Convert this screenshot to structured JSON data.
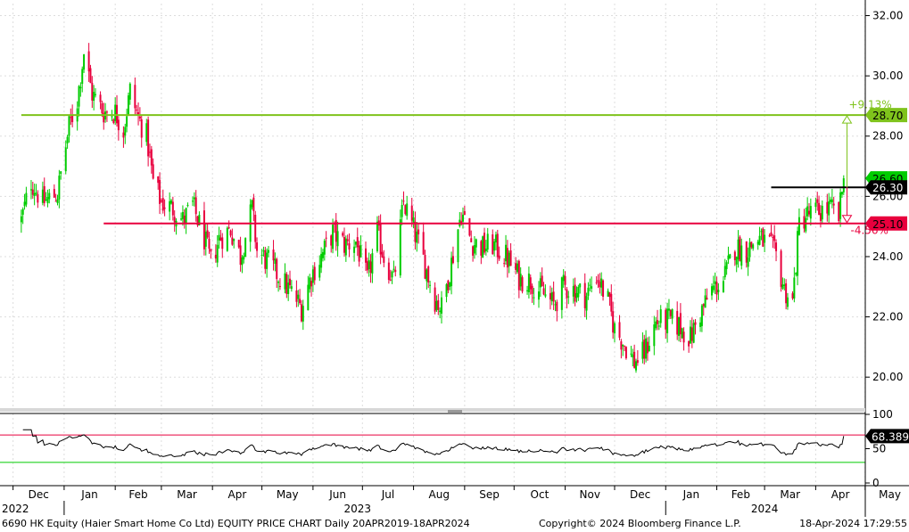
{
  "chart_data": [
    {
      "type": "candlestick",
      "ticker": "6690 HK Equity",
      "ylim": [
        19,
        32.4
      ],
      "y_ticks": [
        "32.00",
        "30.00",
        "28.00",
        "26.00",
        "24.00",
        "22.00",
        "20.00"
      ],
      "up_color": "#00cc00",
      "down_color": "#e8003d",
      "close_path": [
        [
          "2022-12-06",
          25.2
        ],
        [
          "2022-12-12",
          26.5
        ],
        [
          "2022-12-19",
          25.8
        ],
        [
          "2022-12-28",
          26.1
        ],
        [
          "2023-01-04",
          28.3
        ],
        [
          "2023-01-09",
          29.2
        ],
        [
          "2023-01-13",
          30.8
        ],
        [
          "2023-01-18",
          29.4
        ],
        [
          "2023-01-25",
          28.8
        ],
        [
          "2023-02-01",
          28.8
        ],
        [
          "2023-02-06",
          28.2
        ],
        [
          "2023-02-10",
          29.5
        ],
        [
          "2023-02-15",
          28.6
        ],
        [
          "2023-02-20",
          28.0
        ],
        [
          "2023-02-24",
          26.5
        ],
        [
          "2023-03-01",
          25.8
        ],
        [
          "2023-03-08",
          25.6
        ],
        [
          "2023-03-14",
          25.2
        ],
        [
          "2023-03-20",
          25.7
        ],
        [
          "2023-03-27",
          24.6
        ],
        [
          "2023-03-31",
          23.8
        ],
        [
          "2023-04-05",
          24.6
        ],
        [
          "2023-04-12",
          24.9
        ],
        [
          "2023-04-18",
          24.0
        ],
        [
          "2023-04-25",
          25.6
        ],
        [
          "2023-04-28",
          24.2
        ],
        [
          "2023-05-05",
          23.8
        ],
        [
          "2023-05-12",
          23.3
        ],
        [
          "2023-05-19",
          22.8
        ],
        [
          "2023-05-25",
          22.3
        ],
        [
          "2023-05-31",
          23.4
        ],
        [
          "2023-06-07",
          24.1
        ],
        [
          "2023-06-13",
          24.8
        ],
        [
          "2023-06-20",
          24.4
        ],
        [
          "2023-06-27",
          24.5
        ],
        [
          "2023-07-04",
          23.2
        ],
        [
          "2023-07-10",
          24.8
        ],
        [
          "2023-07-14",
          24.0
        ],
        [
          "2023-07-20",
          23.2
        ],
        [
          "2023-07-26",
          25.8
        ],
        [
          "2023-08-01",
          24.9
        ],
        [
          "2023-08-07",
          23.9
        ],
        [
          "2023-08-14",
          22.6
        ],
        [
          "2023-08-18",
          22.3
        ],
        [
          "2023-08-24",
          23.8
        ],
        [
          "2023-08-30",
          25.5
        ],
        [
          "2023-09-05",
          24.5
        ],
        [
          "2023-09-12",
          24.3
        ],
        [
          "2023-09-18",
          24.4
        ],
        [
          "2023-09-26",
          24.0
        ],
        [
          "2023-10-04",
          23.3
        ],
        [
          "2023-10-11",
          23.2
        ],
        [
          "2023-10-18",
          22.8
        ],
        [
          "2023-10-25",
          22.4
        ],
        [
          "2023-10-31",
          23.0
        ],
        [
          "2023-11-07",
          22.9
        ],
        [
          "2023-11-14",
          22.7
        ],
        [
          "2023-11-20",
          23.4
        ],
        [
          "2023-11-27",
          22.5
        ],
        [
          "2023-12-01",
          21.6
        ],
        [
          "2023-12-07",
          21.1
        ],
        [
          "2023-12-13",
          20.5
        ],
        [
          "2023-12-19",
          20.8
        ],
        [
          "2023-12-26",
          21.8
        ],
        [
          "2024-01-03",
          21.9
        ],
        [
          "2024-01-09",
          21.7
        ],
        [
          "2024-01-16",
          21.3
        ],
        [
          "2024-01-22",
          22.1
        ],
        [
          "2024-01-29",
          22.9
        ],
        [
          "2024-02-05",
          23.2
        ],
        [
          "2024-02-12",
          24.3
        ],
        [
          "2024-02-19",
          24.2
        ],
        [
          "2024-02-26",
          24.6
        ],
        [
          "2024-03-04",
          24.4
        ],
        [
          "2024-03-08",
          24.0
        ],
        [
          "2024-03-13",
          22.9
        ],
        [
          "2024-03-18",
          22.5
        ],
        [
          "2024-03-22",
          25.1
        ],
        [
          "2024-03-27",
          25.4
        ],
        [
          "2024-04-03",
          25.5
        ],
        [
          "2024-04-10",
          25.6
        ],
        [
          "2024-04-15",
          25.3
        ],
        [
          "2024-04-18",
          26.6
        ]
      ],
      "horizontal_lines": [
        {
          "value": 28.7,
          "label": "28.70",
          "color": "#7fc31c",
          "start": "2022-12-06"
        },
        {
          "value": 26.3,
          "label": "26.30",
          "color": "#000000",
          "start": "2024-03-05"
        },
        {
          "value": 25.1,
          "label": "25.10",
          "color": "#e8003d",
          "start": "2023-01-25"
        }
      ],
      "last_price": {
        "value": 26.6,
        "label": "26.60",
        "color": "#00cc00"
      },
      "annotations": [
        {
          "text": "+9.13%",
          "color": "#7fc31c"
        },
        {
          "text": "-4.56%",
          "color": "#e8003d"
        }
      ]
    },
    {
      "type": "line",
      "indicator": "RSI",
      "ylim": [
        0,
        100
      ],
      "y_ticks": [
        "100",
        "50",
        "0"
      ],
      "upper_band": 70,
      "lower_band": 30,
      "band_colors": {
        "upper": "#e8003d",
        "lower": "#00cc00"
      },
      "last_value": {
        "value": 68.389,
        "label": "68.389"
      },
      "line_color": "#000000"
    }
  ],
  "x_axis": {
    "months": [
      "Dec",
      "Jan",
      "Feb",
      "Mar",
      "Apr",
      "May",
      "Jun",
      "Jul",
      "Aug",
      "Sep",
      "Oct",
      "Nov",
      "Dec",
      "Jan",
      "Feb",
      "Mar",
      "Apr",
      "May"
    ],
    "years": [
      "2022",
      "2023",
      "2024"
    ]
  },
  "footer": {
    "title": "6690 HK Equity (Haier Smart Home Co Ltd) EQUITY PRICE CHART  Daily 20APR2019-18APR2024",
    "copyright": "Copyright© 2024 Bloomberg Finance L.P.",
    "timestamp": "18-Apr-2024 17:29:55"
  }
}
